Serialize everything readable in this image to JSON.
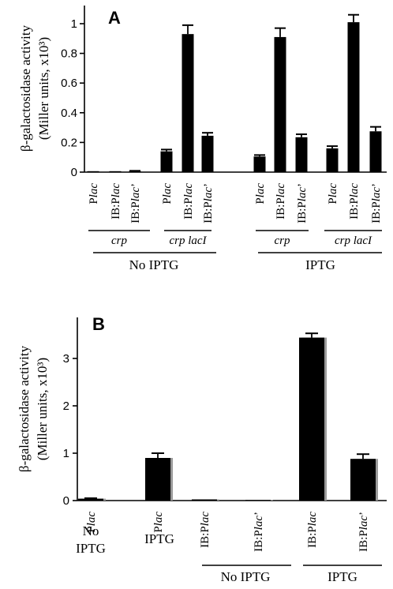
{
  "chart_data": [
    {
      "type": "bar",
      "panel_label": "A",
      "ylabel_line1": "β-galactosidase activity",
      "ylabel_line2": "(Miller units, x10³)",
      "ylim": [
        0,
        1.1
      ],
      "yticks": [
        "0",
        "0.2",
        "0.4",
        "0.6",
        "0.8",
        "1"
      ],
      "ytick_values": [
        0,
        0.2,
        0.4,
        0.6,
        0.8,
        1.0
      ],
      "categories": [
        "Plac",
        "IB:Plac",
        "IB:Plac’",
        "Plac",
        "IB:Plac",
        "IB:Plac’",
        "Plac",
        "IB:Plac",
        "IB:Plac’",
        "Plac",
        "IB:Plac",
        "IB:Plac’"
      ],
      "values": [
        0.003,
        0.003,
        0.006,
        0.14,
        0.93,
        0.245,
        0.105,
        0.91,
        0.235,
        0.16,
        1.01,
        0.275
      ],
      "errors": [
        0.0,
        0.0,
        0.003,
        0.012,
        0.06,
        0.02,
        0.01,
        0.06,
        0.02,
        0.015,
        0.05,
        0.03
      ],
      "strain_groups": [
        "crp",
        "crp lacI",
        "crp",
        "crp lacI"
      ],
      "condition_groups": [
        "No IPTG",
        "IPTG"
      ],
      "grid": false
    },
    {
      "type": "bar",
      "panel_label": "B",
      "ylabel_line1": "β-galactosidase activity",
      "ylabel_line2": "(Miller units, x10³)",
      "ylim": [
        0,
        3.7
      ],
      "yticks": [
        "0",
        "1",
        "2",
        "3"
      ],
      "ytick_values": [
        0,
        1,
        2,
        3
      ],
      "categories": [
        "Plac",
        "Plac",
        "IB:Plac",
        "IB:Plac’",
        "IB:Plac",
        "IB:Plac’"
      ],
      "values": [
        0.04,
        0.9,
        0.01,
        0.0,
        3.44,
        0.88
      ],
      "errors": [
        0.01,
        0.1,
        0.0,
        0.0,
        0.09,
        0.1
      ],
      "sublabels": [
        "No IPTG",
        "IPTG"
      ],
      "condition_groups": [
        "No IPTG",
        "IPTG"
      ],
      "grid": false
    }
  ]
}
